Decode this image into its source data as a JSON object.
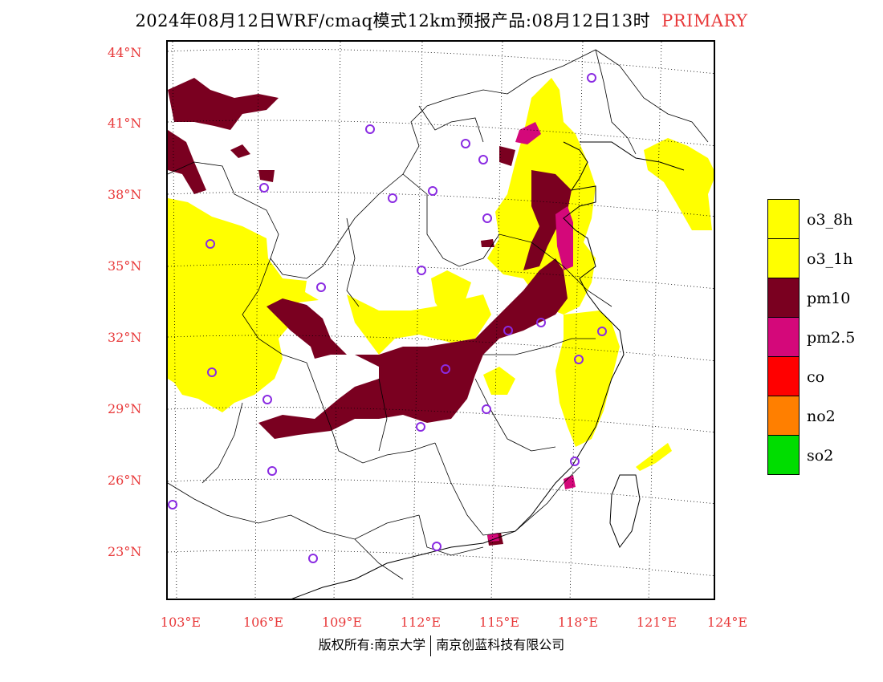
{
  "title": {
    "main": "2024年08月12日WRF/cmaq模式12km预报产品:08月12日13时",
    "tag": "PRIMARY"
  },
  "axes": {
    "lat_labels": [
      "44°N",
      "41°N",
      "38°N",
      "35°N",
      "32°N",
      "29°N",
      "26°N",
      "23°N"
    ],
    "lon_labels": [
      "103°E",
      "106°E",
      "109°E",
      "112°E",
      "115°E",
      "118°E",
      "121°E",
      "124°E"
    ]
  },
  "legend": [
    {
      "label": "o3_8h",
      "color": "#ffff00"
    },
    {
      "label": "o3_1h",
      "color": "#ffff00"
    },
    {
      "label": "pm10",
      "color": "#7a0020"
    },
    {
      "label": "pm2.5",
      "color": "#d4087a"
    },
    {
      "label": "co",
      "color": "#ff0000"
    },
    {
      "label": "no2",
      "color": "#ff7f00"
    },
    {
      "label": "so2",
      "color": "#00dd00"
    }
  ],
  "footer": {
    "left": "版权所有:南京大学",
    "right": "南京创蓝科技有限公司"
  },
  "colors": {
    "axis_text": "#e8393a",
    "station_marker": "#8a2be2"
  }
}
